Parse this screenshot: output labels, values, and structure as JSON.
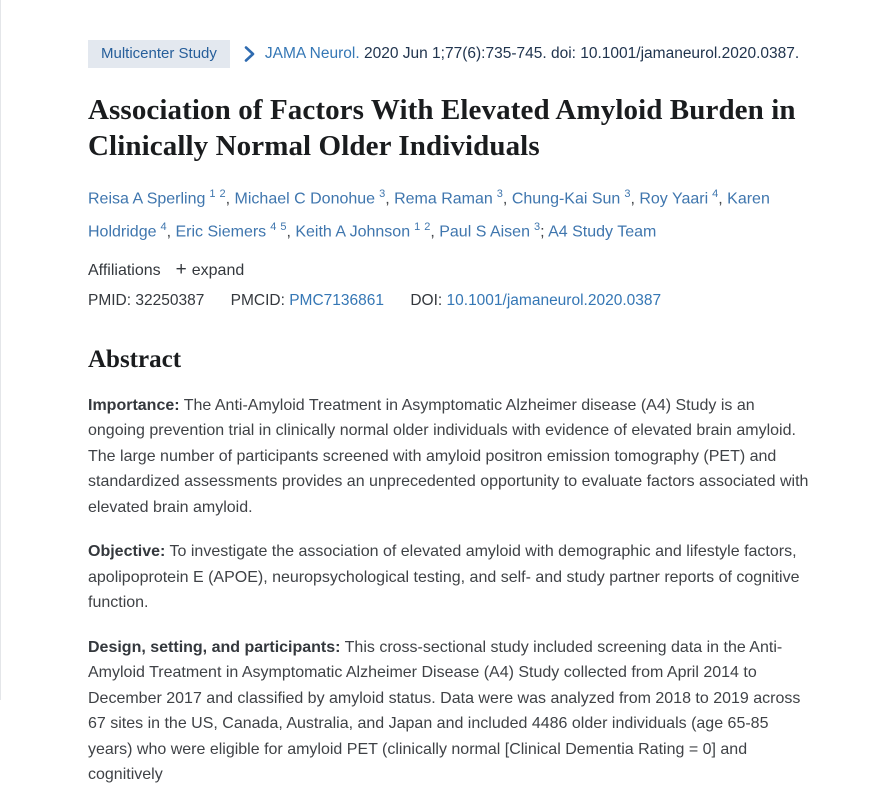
{
  "colors": {
    "link_blue": "#3577b5",
    "badge_bg": "#e3e8ef",
    "badge_text": "#265e9a",
    "citation_text": "#20344e",
    "body_text": "#3f4246"
  },
  "header": {
    "badge": "Multicenter Study",
    "journal": "JAMA Neurol.",
    "citation_rest": "2020 Jun 1;77(6):735-745. doi: 10.1001/jamaneurol.2020.0387."
  },
  "title": "Association of Factors With Elevated Amyloid Burden in Clinically Normal Older Individuals",
  "authors": [
    {
      "name": "Reisa A Sperling",
      "sups": [
        "1",
        "2"
      ],
      "sep": ", "
    },
    {
      "name": "Michael C Donohue",
      "sups": [
        "3"
      ],
      "sep": ", "
    },
    {
      "name": "Rema Raman",
      "sups": [
        "3"
      ],
      "sep": ", "
    },
    {
      "name": "Chung-Kai Sun",
      "sups": [
        "3"
      ],
      "sep": ", "
    },
    {
      "name": "Roy Yaari",
      "sups": [
        "4"
      ],
      "sep": ", "
    },
    {
      "name": "Karen Holdridge",
      "sups": [
        "4"
      ],
      "sep": ", "
    },
    {
      "name": "Eric Siemers",
      "sups": [
        "4",
        "5"
      ],
      "sep": ", "
    },
    {
      "name": "Keith A Johnson",
      "sups": [
        "1",
        "2"
      ],
      "sep": ", "
    },
    {
      "name": "Paul S Aisen",
      "sups": [
        "3"
      ],
      "sep": "; "
    },
    {
      "name": "A4 Study Team",
      "sups": [],
      "sep": ""
    }
  ],
  "affiliations": {
    "label": "Affiliations",
    "plus": "+",
    "expand_label": "expand"
  },
  "ids": {
    "pmid_label": "PMID:",
    "pmid": "32250387",
    "pmcid_label": "PMCID:",
    "pmcid": "PMC7136861",
    "doi_label": "DOI:",
    "doi": "10.1001/jamaneurol.2020.0387"
  },
  "abstract": {
    "heading": "Abstract",
    "sections": [
      {
        "label": "Importance:",
        "text": "The Anti-Amyloid Treatment in Asymptomatic Alzheimer disease (A4) Study is an ongoing prevention trial in clinically normal older individuals with evidence of elevated brain amyloid. The large number of participants screened with amyloid positron emission tomography (PET) and standardized assessments provides an unprecedented opportunity to evaluate factors associated with elevated brain amyloid."
      },
      {
        "label": "Objective:",
        "text": "To investigate the association of elevated amyloid with demographic and lifestyle factors, apolipoprotein E (APOE), neuropsychological testing, and self- and study partner reports of cognitive function."
      },
      {
        "label": "Design, setting, and participants:",
        "text": "This cross-sectional study included screening data in the Anti-Amyloid Treatment in Asymptomatic Alzheimer Disease (A4) Study collected from April 2014 to December 2017 and classified by amyloid status. Data were was analyzed from 2018 to 2019 across 67 sites in the US, Canada, Australia, and Japan and included 4486 older individuals (age 65-85 years) who were eligible for amyloid PET (clinically normal [Clinical Dementia Rating = 0] and cognitively"
      }
    ]
  }
}
